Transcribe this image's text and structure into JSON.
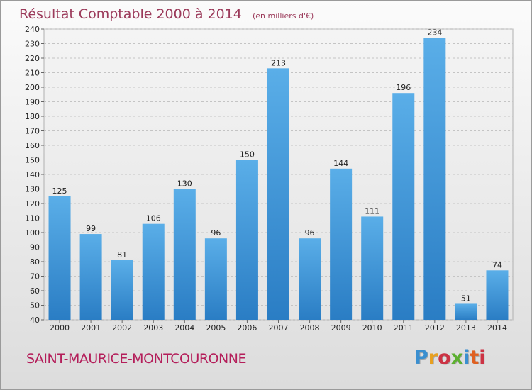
{
  "chart_data": {
    "type": "bar",
    "title": "Résultat Comptable 2000 à 2014",
    "unit": "(en milliers d'€)",
    "categories": [
      "2000",
      "2001",
      "2002",
      "2003",
      "2004",
      "2005",
      "2006",
      "2007",
      "2008",
      "2009",
      "2010",
      "2011",
      "2012",
      "2013",
      "2014"
    ],
    "values": [
      125,
      99,
      81,
      106,
      130,
      96,
      150,
      213,
      96,
      144,
      111,
      196,
      234,
      51,
      74
    ],
    "ylim": [
      40,
      240
    ],
    "ytick_step": 10,
    "xlabel": "",
    "ylabel": "",
    "grid": true,
    "bar_color_top": "#5aaee8",
    "bar_color_bottom": "#2a7dc4"
  },
  "footer": {
    "city": "SAINT-MAURICE-MONTCOURONNE",
    "logo": "Proxiti",
    "logo_colors": [
      "#3a8fd0",
      "#e8a020",
      "#cc3344",
      "#5cb030",
      "#3a8fd0",
      "#e06020",
      "#cc3344"
    ]
  }
}
